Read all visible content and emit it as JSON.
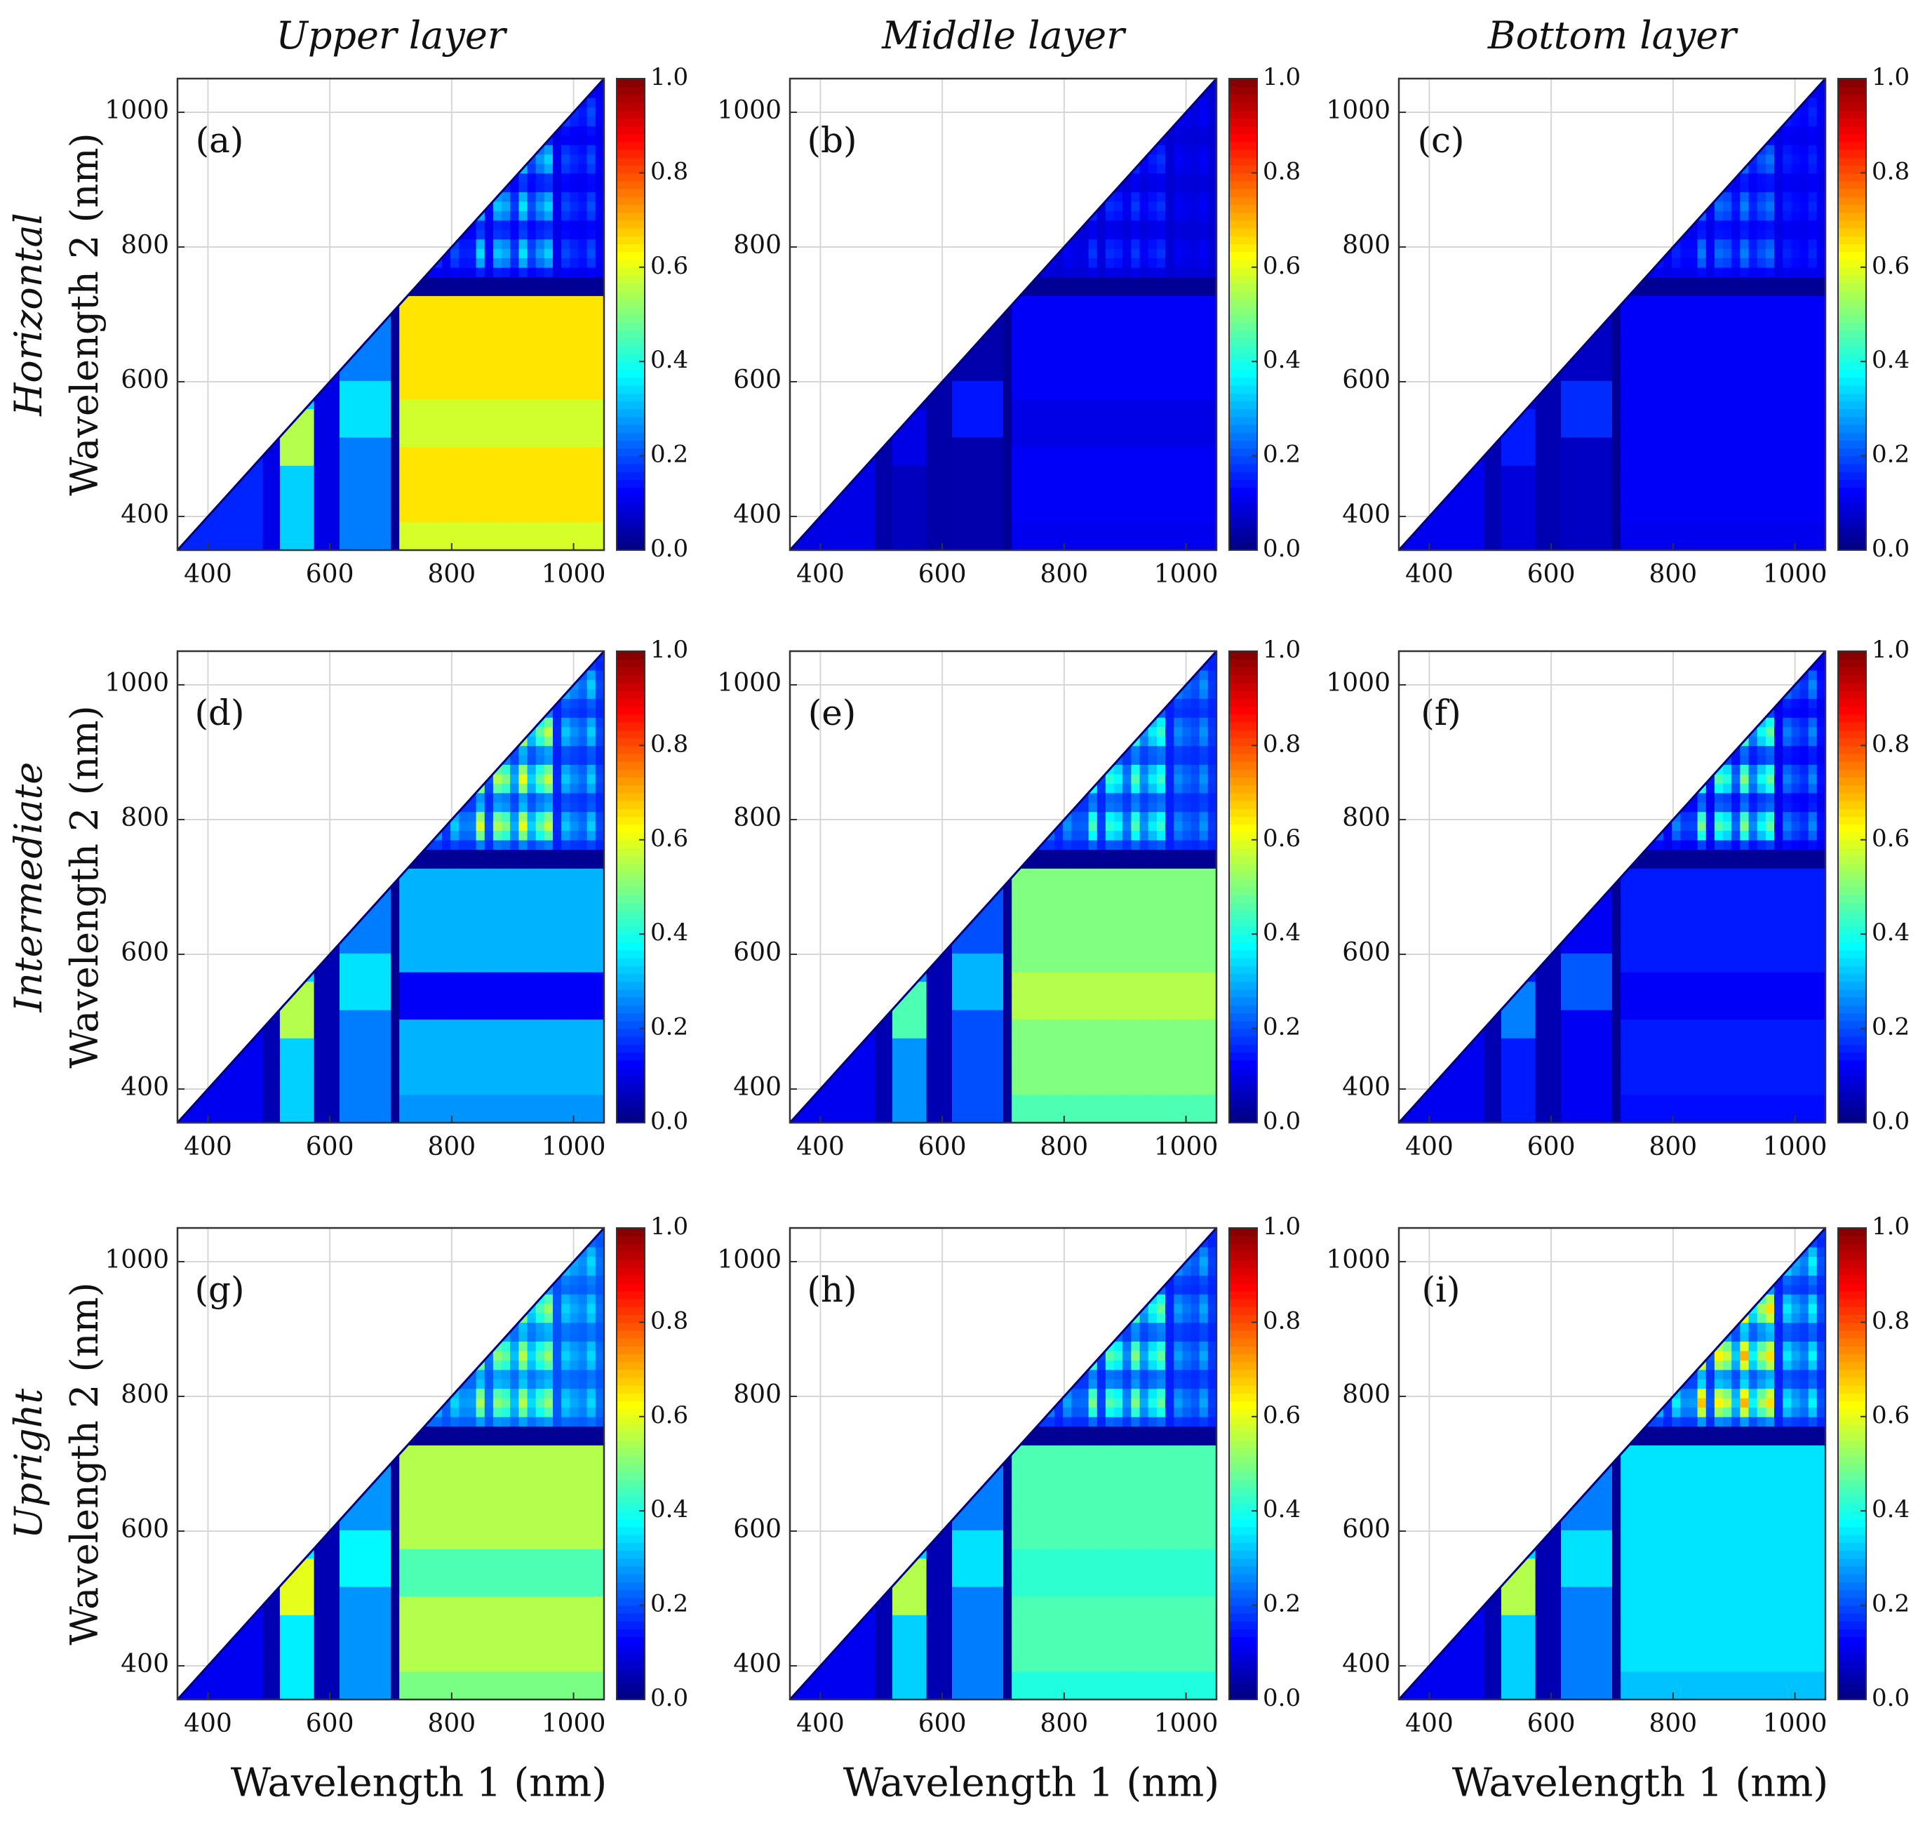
{
  "chart_data": {
    "type": "heatmap",
    "figure_layout": "3x3 grid of triangular correlation heatmaps",
    "column_titles": [
      "Upper layer",
      "Middle layer",
      "Bottom layer"
    ],
    "row_titles": [
      "Horizontal",
      "Intermediate",
      "Upright"
    ],
    "xlabel": "Wavelength 1 (nm)",
    "ylabel": "Wavelength 2 (nm)",
    "xlim": [
      350,
      1050
    ],
    "ylim": [
      350,
      1050
    ],
    "x_ticks": [
      "400",
      "600",
      "800",
      "1000"
    ],
    "y_ticks": [
      "400",
      "600",
      "800",
      "1000"
    ],
    "colorbar": {
      "range": [
        0.0,
        1.0
      ],
      "ticks": [
        "0.0",
        "0.2",
        "0.4",
        "0.6",
        "0.8",
        "1.0"
      ],
      "colormap": "jet"
    },
    "panels": [
      {
        "label": "(a)",
        "row": "Horizontal",
        "column": "Upper layer",
        "block_value": 0.65,
        "secondary_value": 0.58,
        "band_low": 0.1,
        "diag_high": 0.55,
        "corner_value": 0.1,
        "corner_patch": 0.25
      },
      {
        "label": "(b)",
        "row": "Horizontal",
        "column": "Middle layer",
        "block_value": 0.12,
        "secondary_value": 0.1,
        "band_low": 0.04,
        "diag_high": 0.1,
        "corner_value": 0.08,
        "corner_patch": 0.1
      },
      {
        "label": "(c)",
        "row": "Horizontal",
        "column": "Bottom layer",
        "block_value": 0.12,
        "secondary_value": 0.12,
        "band_low": 0.05,
        "diag_high": 0.15,
        "corner_value": 0.1,
        "corner_patch": 0.15
      },
      {
        "label": "(d)",
        "row": "Intermediate",
        "column": "Upper layer",
        "block_value": 0.3,
        "secondary_value": 0.12,
        "band_low": 0.05,
        "diag_high": 0.55,
        "corner_value": 0.15,
        "corner_patch": 0.45
      },
      {
        "label": "(e)",
        "row": "Intermediate",
        "column": "Middle layer",
        "block_value": 0.5,
        "secondary_value": 0.55,
        "band_low": 0.05,
        "diag_high": 0.45,
        "corner_value": 0.15,
        "corner_patch": 0.3
      },
      {
        "label": "(f)",
        "row": "Intermediate",
        "column": "Bottom layer",
        "block_value": 0.15,
        "secondary_value": 0.12,
        "band_low": 0.05,
        "diag_high": 0.25,
        "corner_value": 0.1,
        "corner_patch": 0.4
      },
      {
        "label": "(g)",
        "row": "Upright",
        "column": "Upper layer",
        "block_value": 0.55,
        "secondary_value": 0.45,
        "band_low": 0.05,
        "diag_high": 0.6,
        "corner_value": 0.2,
        "corner_patch": 0.35
      },
      {
        "label": "(h)",
        "row": "Upright",
        "column": "Middle layer",
        "block_value": 0.45,
        "secondary_value": 0.42,
        "band_low": 0.05,
        "diag_high": 0.55,
        "corner_value": 0.15,
        "corner_patch": 0.35
      },
      {
        "label": "(i)",
        "row": "Upright",
        "column": "Bottom layer",
        "block_value": 0.35,
        "secondary_value": 0.35,
        "band_low": 0.05,
        "diag_high": 0.55,
        "corner_value": 0.15,
        "corner_patch": 0.55
      }
    ]
  },
  "colors": {
    "background": "#ffffff",
    "axis": "#333333",
    "grid": "#d6d6d6",
    "text": "#111111"
  }
}
